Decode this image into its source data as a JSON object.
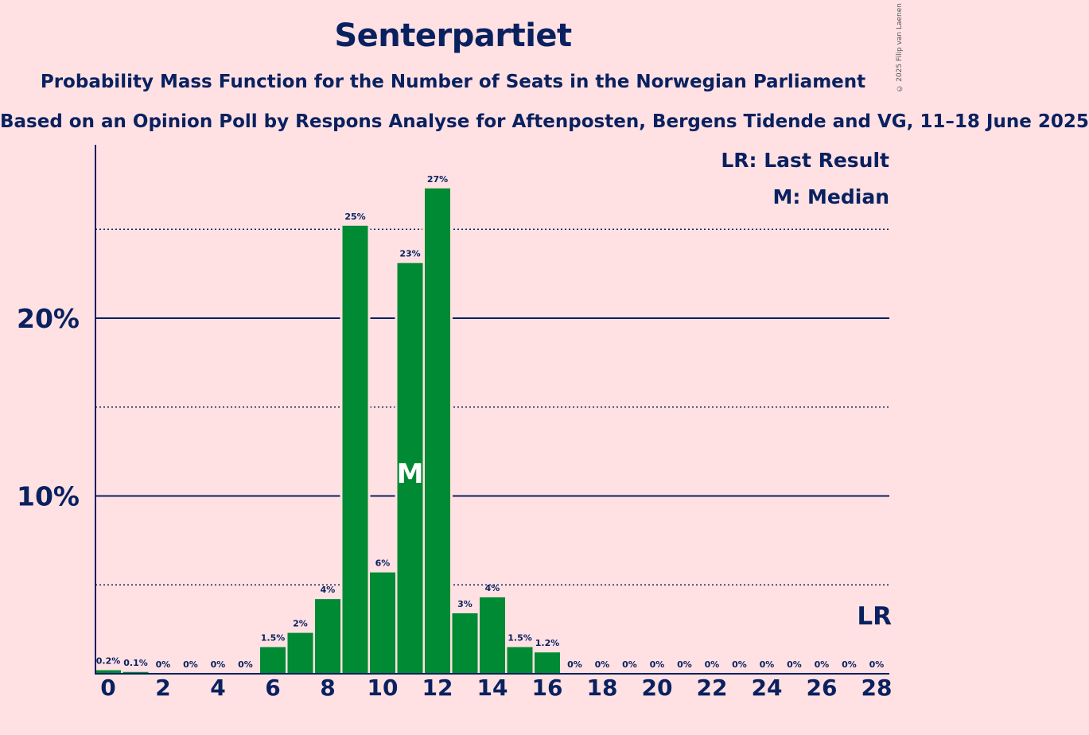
{
  "title": "Senterpartiet",
  "subtitle": "Probability Mass Function for the Number of Seats in the Norwegian Parliament",
  "subtitle2": "Based on an Opinion Poll by Respons Analyse for Aftenposten, Bergens Tidende and VG, 11–18 June 2025",
  "copyright": "© 2025 Filip van Laenen",
  "colors": {
    "background": "#FFE1E3",
    "bar": "#008A33",
    "text": "#0A2160"
  },
  "chart_data": {
    "type": "bar",
    "categories": [
      0,
      1,
      2,
      3,
      4,
      5,
      6,
      7,
      8,
      9,
      10,
      11,
      12,
      13,
      14,
      15,
      16,
      17,
      18,
      19,
      20,
      21,
      22,
      23,
      24,
      25,
      26,
      27,
      28
    ],
    "values": [
      0.2,
      0.1,
      0,
      0,
      0,
      0,
      1.5,
      2.3,
      4.2,
      25.2,
      5.7,
      23.1,
      27.3,
      3.4,
      4.3,
      1.5,
      1.2,
      0,
      0,
      0,
      0,
      0,
      0,
      0,
      0,
      0,
      0,
      0,
      0
    ],
    "data_labels": [
      "0.2%",
      "0.1%",
      "0%",
      "0%",
      "0%",
      "0%",
      "1.5%",
      "2%",
      "4%",
      "25%",
      "6%",
      "23%",
      "27%",
      "3%",
      "4%",
      "1.5%",
      "1.2%",
      "0%",
      "0%",
      "0%",
      "0%",
      "0%",
      "0%",
      "0%",
      "0%",
      "0%",
      "0%",
      "0%",
      "0%"
    ],
    "x_tick_labels": [
      "0",
      "2",
      "4",
      "6",
      "8",
      "10",
      "12",
      "14",
      "16",
      "18",
      "20",
      "22",
      "24",
      "26",
      "28"
    ],
    "y_tick_labels": [
      "10%",
      "20%"
    ],
    "ylim": [
      0,
      29.5
    ],
    "major_gridlines": [
      10,
      20
    ],
    "minor_gridlines": [
      5,
      15,
      25
    ],
    "median_seat": 11,
    "median_marker": "M",
    "last_result_seat": 28,
    "last_result_marker": "LR",
    "legend": [
      "LR: Last Result",
      "M: Median"
    ],
    "legend_position": "top-right"
  }
}
